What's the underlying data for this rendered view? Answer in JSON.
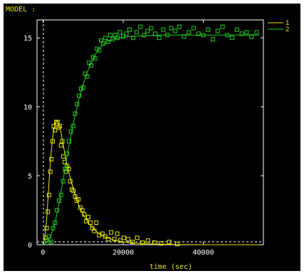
{
  "header": {
    "model_label": "MODEL :"
  },
  "colors": {
    "background": "#000000",
    "axes": "#ffffff",
    "series1": "#e8e800",
    "series2": "#22cc22",
    "label": "#e8e800"
  },
  "chart_data": {
    "type": "scatter",
    "xlabel": "time (sec)",
    "ylabel": "",
    "xlim": [
      -1500,
      55000
    ],
    "ylim": [
      0,
      16.3
    ],
    "x_ticks": [
      0,
      20000,
      40000
    ],
    "y_ticks": [
      0,
      5,
      10,
      15
    ],
    "grid": false,
    "legend": "top-right",
    "series": [
      {
        "name": "1",
        "color": "#e8e800",
        "fit": {
          "x": [
            0,
            500,
            1000,
            1500,
            2000,
            2500,
            3000,
            3500,
            4000,
            4500,
            5000,
            5500,
            6000,
            7000,
            8000,
            9000,
            10000,
            11000,
            12000,
            13000,
            14000,
            16000,
            18000,
            20000,
            22000,
            25000,
            30000,
            35000,
            40000,
            45000,
            50000,
            54000
          ],
          "y": [
            0,
            0.6,
            2.2,
            4.6,
            6.6,
            8.0,
            8.8,
            9.0,
            8.7,
            8.1,
            7.3,
            6.5,
            5.8,
            4.6,
            3.6,
            2.8,
            2.2,
            1.7,
            1.35,
            1.05,
            0.8,
            0.5,
            0.32,
            0.2,
            0.13,
            0.07,
            0.03,
            0.01,
            0,
            0,
            0,
            0
          ]
        },
        "observed": {
          "x": [
            600,
            900,
            1200,
            1500,
            1800,
            2100,
            2400,
            2700,
            3000,
            3300,
            3600,
            3900,
            4200,
            4500,
            4800,
            5100,
            5400,
            5700,
            6000,
            6400,
            6800,
            7200,
            7600,
            8000,
            8400,
            8800,
            9300,
            9800,
            10300,
            10800,
            11300,
            11800,
            12300,
            12800,
            13300,
            14000,
            14800,
            15500,
            16300,
            17000,
            17800,
            18500,
            19300,
            20200,
            21200,
            22300,
            23500,
            24800,
            26200,
            27800,
            29500,
            31500,
            33500
          ],
          "y": [
            0.5,
            1.2,
            2.4,
            3.6,
            5.3,
            6.2,
            7.5,
            8.6,
            8.3,
            8.9,
            8.9,
            8.5,
            8.6,
            7.2,
            7.5,
            6.4,
            6.0,
            5.3,
            5.7,
            5.5,
            4.6,
            4.0,
            3.9,
            3.5,
            3.2,
            3.3,
            2.7,
            2.5,
            2.2,
            1.7,
            2.0,
            1.6,
            1.2,
            1.0,
            1.6,
            0.7,
            0.8,
            0.6,
            0.4,
            0.9,
            0.4,
            0.8,
            0.3,
            0.5,
            0.4,
            0.2,
            0.5,
            0.15,
            0.3,
            0.15,
            0.1,
            0.2,
            0.05
          ]
        }
      },
      {
        "name": "2",
        "color": "#22cc22",
        "fit": {
          "x": [
            0,
            1000,
            2000,
            3000,
            4000,
            5000,
            6000,
            7000,
            8000,
            9000,
            10000,
            11000,
            12000,
            13000,
            14000,
            15000,
            16000,
            17000,
            18000,
            20000,
            22000,
            25000,
            30000,
            35000,
            40000,
            45000,
            50000,
            54000
          ],
          "y": [
            0,
            0.2,
            0.7,
            1.6,
            3.0,
            4.7,
            6.4,
            8.0,
            9.4,
            10.6,
            11.6,
            12.5,
            13.2,
            13.8,
            14.2,
            14.5,
            14.7,
            14.85,
            14.95,
            15.05,
            15.1,
            15.15,
            15.2,
            15.2,
            15.2,
            15.2,
            15.2,
            15.2
          ]
        },
        "observed": {
          "x": [
            1000,
            1500,
            2000,
            2500,
            3000,
            3500,
            4000,
            4500,
            5000,
            5500,
            6000,
            6500,
            7000,
            7500,
            8000,
            8500,
            9000,
            9500,
            10000,
            10500,
            11000,
            11500,
            12000,
            12500,
            13000,
            13500,
            14000,
            14500,
            15000,
            15600,
            16200,
            16800,
            17400,
            18000,
            18600,
            19200,
            20000,
            20800,
            21600,
            22500,
            23400,
            24300,
            25200,
            26100,
            27000,
            28000,
            29000,
            30000,
            31000,
            32000,
            33000,
            34000,
            35200,
            36400,
            37600,
            38800,
            40000,
            41200,
            42400,
            43600,
            44800,
            46000,
            47200,
            48400,
            49600,
            50800,
            52000,
            53300
          ],
          "y": [
            0.3,
            0.6,
            0.2,
            1.2,
            1.6,
            2.5,
            3.2,
            3.6,
            4.6,
            5.5,
            6.6,
            7.5,
            8.2,
            8.6,
            9.5,
            10.2,
            10.8,
            11.3,
            11.4,
            12.4,
            12.2,
            13.2,
            13.0,
            13.6,
            13.5,
            14.2,
            14.1,
            14.8,
            14.6,
            15.0,
            14.7,
            15.2,
            14.9,
            15.2,
            15.0,
            15.4,
            15.1,
            15.3,
            15.6,
            15.0,
            15.4,
            15.8,
            15.2,
            15.5,
            15.7,
            15.3,
            15.0,
            15.6,
            15.2,
            15.7,
            15.5,
            15.8,
            15.1,
            15.4,
            15.7,
            15.3,
            15.2,
            15.6,
            14.9,
            15.5,
            15.8,
            15.2,
            15.0,
            15.6,
            15.3,
            15.4,
            15.1,
            15.4
          ]
        }
      }
    ]
  }
}
